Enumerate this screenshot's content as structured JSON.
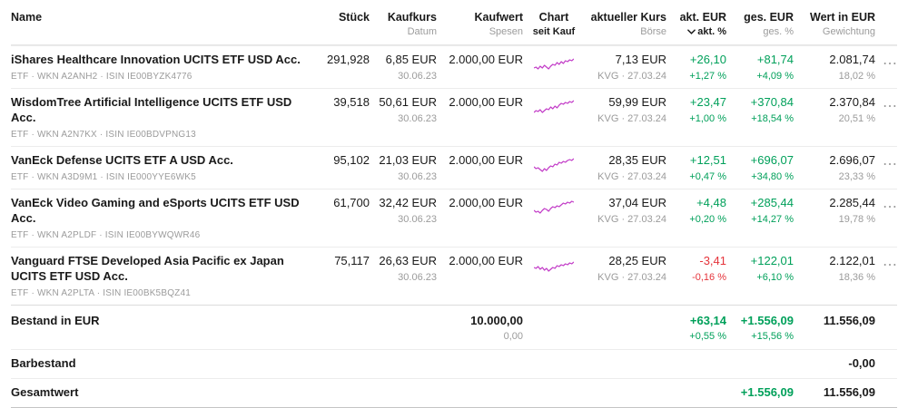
{
  "colors": {
    "positive_green": "#00A05A",
    "negative_red": "#E5343B",
    "sparkline_magenta": "#C23BC7",
    "text_primary": "#1A1A1A",
    "text_secondary": "#9B9B9B"
  },
  "icons": {
    "row_menu": "⋯",
    "sort_desc": "chevron-down-icon"
  },
  "header": {
    "name": "Name",
    "stueck": "Stück",
    "kaufkurs": "Kaufkurs",
    "kaufkurs_sub": "Datum",
    "kaufwert": "Kaufwert",
    "kaufwert_sub": "Spesen",
    "chart": "Chart",
    "chart_sub": "seit Kauf",
    "kurs": "aktueller Kurs",
    "kurs_sub": "Börse",
    "akt": "akt. EUR",
    "akt_sub": "akt. %",
    "ges": "ges. EUR",
    "ges_sub": "ges. %",
    "wert": "Wert in EUR",
    "wert_sub": "Gewichtung"
  },
  "rows": [
    {
      "name": "iShares Healthcare Innovation UCITS ETF USD Acc.",
      "meta": "ETF · WKN A2ANH2 · ISIN IE00BYZK4776",
      "stueck": "291,928",
      "kaufkurs": "6,85 EUR",
      "datum": "30.06.23",
      "kaufwert": "2.000,00 EUR",
      "kurs": "7,13 EUR",
      "boerse": "KVG · 27.03.24",
      "akt_eur": "+26,10",
      "akt_pct": "+1,27 %",
      "akt_cls": "pos",
      "ges_eur": "+81,74",
      "ges_pct": "+4,09 %",
      "ges_cls": "pos",
      "wert": "2.081,74",
      "gewichtung": "18,02 %",
      "spark": [
        8,
        9,
        7,
        10,
        8,
        11,
        9,
        7,
        10,
        12,
        11,
        14,
        12,
        15,
        13,
        16,
        15,
        17,
        16,
        18
      ]
    },
    {
      "name": "WisdomTree Artificial Intelligence UCITS ETF USD Acc.",
      "meta": "ETF · WKN A2N7KX · ISIN IE00BDVPNG13",
      "stueck": "39,518",
      "kaufkurs": "50,61 EUR",
      "datum": "30.06.23",
      "kaufwert": "2.000,00 EUR",
      "kurs": "59,99 EUR",
      "boerse": "KVG · 27.03.24",
      "akt_eur": "+23,47",
      "akt_pct": "+1,00 %",
      "akt_cls": "pos",
      "ges_eur": "+370,84",
      "ges_pct": "+18,54 %",
      "ges_cls": "pos",
      "wert": "2.370,84",
      "gewichtung": "20,51 %",
      "spark": [
        6,
        8,
        7,
        9,
        6,
        8,
        10,
        9,
        12,
        10,
        13,
        11,
        14,
        16,
        15,
        17,
        16,
        18,
        17,
        19
      ]
    },
    {
      "name": "VanEck Defense UCITS ETF A USD Acc.",
      "meta": "ETF · WKN A3D9M1 · ISIN IE000YYE6WK5",
      "stueck": "95,102",
      "kaufkurs": "21,03 EUR",
      "datum": "30.06.23",
      "kaufwert": "2.000,00 EUR",
      "kurs": "28,35 EUR",
      "boerse": "KVG · 27.03.24",
      "akt_eur": "+12,51",
      "akt_pct": "+0,47 %",
      "akt_cls": "pos",
      "ges_eur": "+696,07",
      "ges_pct": "+34,80 %",
      "ges_cls": "pos",
      "wert": "2.696,07",
      "gewichtung": "23,33 %",
      "spark": [
        10,
        8,
        9,
        7,
        5,
        8,
        6,
        9,
        11,
        10,
        13,
        12,
        15,
        14,
        16,
        15,
        17,
        18,
        17,
        19
      ]
    },
    {
      "name": "VanEck Video Gaming and eSports UCITS ETF USD Acc.",
      "meta": "ETF · WKN A2PLDF · ISIN IE00BYWQWR46",
      "stueck": "61,700",
      "kaufkurs": "32,42 EUR",
      "datum": "30.06.23",
      "kaufwert": "2.000,00 EUR",
      "kurs": "37,04 EUR",
      "boerse": "KVG · 27.03.24",
      "akt_eur": "+4,48",
      "akt_pct": "+0,20 %",
      "akt_cls": "pos",
      "ges_eur": "+285,44",
      "ges_pct": "+14,27 %",
      "ges_cls": "pos",
      "wert": "2.285,44",
      "gewichtung": "19,78 %",
      "spark": [
        9,
        7,
        8,
        6,
        9,
        11,
        10,
        8,
        11,
        13,
        12,
        14,
        13,
        15,
        17,
        16,
        18,
        17,
        19,
        18
      ]
    },
    {
      "name": "Vanguard FTSE Developed Asia Pacific ex Japan UCITS ETF USD Acc.",
      "meta": "ETF · WKN A2PLTA · ISIN IE00BK5BQZ41",
      "stueck": "75,117",
      "kaufkurs": "26,63 EUR",
      "datum": "30.06.23",
      "kaufwert": "2.000,00 EUR",
      "kurs": "28,25 EUR",
      "boerse": "KVG · 27.03.24",
      "akt_eur": "-3,41",
      "akt_pct": "-0,16 %",
      "akt_cls": "neg",
      "ges_eur": "+122,01",
      "ges_pct": "+6,10 %",
      "ges_cls": "pos",
      "wert": "2.122,01",
      "gewichtung": "18,36 %",
      "spark": [
        10,
        9,
        11,
        8,
        10,
        7,
        9,
        6,
        8,
        10,
        9,
        12,
        11,
        13,
        12,
        14,
        13,
        15,
        14,
        16
      ]
    }
  ],
  "summary": {
    "bestand": {
      "label": "Bestand in EUR",
      "kaufwert": "10.000,00",
      "spesen": "0,00",
      "akt_eur": "+63,14",
      "akt_pct": "+0,55 %",
      "ges_eur": "+1.556,09",
      "ges_pct": "+15,56 %",
      "wert": "11.556,09",
      "cls": "pos"
    },
    "barbestand": {
      "label": "Barbestand",
      "wert": "-0,00"
    },
    "gesamtwert": {
      "label": "Gesamtwert",
      "ges_eur": "+1.556,09",
      "wert": "11.556,09",
      "cls": "pos"
    }
  }
}
